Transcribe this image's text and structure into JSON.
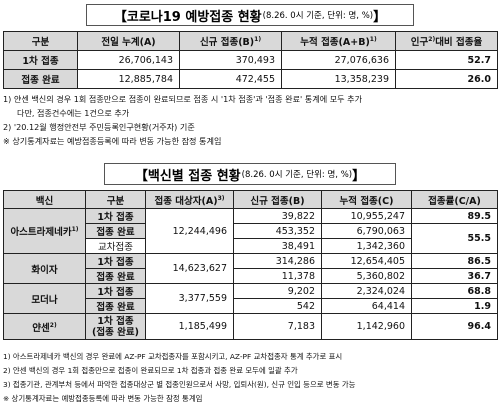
{
  "section1": {
    "title_main": "【코로나19 예방접종 현황",
    "title_sub": "(8.26. 0시 기준, 단위: 명, %)",
    "title_end": "】",
    "headers": [
      "구분",
      "전일 누계(A)",
      "신규 접종(B)",
      "누적 접종(A+B)",
      "인구",
      "대비 접종율"
    ],
    "header_sups": [
      "",
      "",
      "1)",
      "1)",
      "2)",
      ""
    ],
    "rows": [
      {
        "label": "1차 접종",
        "prev": "26,706,143",
        "new": "370,493",
        "total": "27,076,636",
        "rate": "52.7"
      },
      {
        "label": "접종 완료",
        "prev": "12,885,784",
        "new": "472,455",
        "total": "13,358,239",
        "rate": "26.0"
      }
    ],
    "notes": [
      "1) 얀센 백신의 경우 1회 접종만으로 접종이 완료되므로 접종 시 '1차 접종'과 '접종 완료' 통계에 모두 추가",
      "다만, 접종건수에는 1건으로 추가",
      "2) '20.12월 행정안전부 주민등록인구현황(거주자) 기준",
      "※ 상기통계자료는 예방접종등록에 따라 변동 가능한 잠정 통계임"
    ]
  },
  "section2": {
    "title_main": "【백신별 접종 현황",
    "title_sub": "(8.26. 0시 기준, 단위: 명, %)",
    "title_end": "】",
    "headers": [
      "백신",
      "구분",
      "접종 대상자(A)",
      "신규 접종(B)",
      "누적 접종(C)",
      "접종률(C/A)"
    ],
    "header_sups": [
      "",
      "",
      "3)",
      "",
      "",
      ""
    ],
    "az": {
      "name": "아스트라제네카",
      "name_sup": "1)",
      "target": "12,244,496",
      "first": {
        "label": "1차 접종",
        "new": "39,822",
        "total": "10,955,247",
        "rate": "89.5"
      },
      "complete": {
        "label": "접종 완료",
        "new": "453,352",
        "total": "6,790,063",
        "rate": "55.5"
      },
      "cross": {
        "label": "교차접종",
        "new": "38,491",
        "total": "1,342,360"
      }
    },
    "pfizer": {
      "name": "화이자",
      "target": "14,623,627",
      "first": {
        "label": "1차 접종",
        "new": "314,286",
        "total": "12,654,405",
        "rate": "86.5"
      },
      "complete": {
        "label": "접종 완료",
        "new": "11,378",
        "total": "5,360,802",
        "rate": "36.7"
      }
    },
    "moderna": {
      "name": "모더나",
      "target": "3,377,559",
      "first": {
        "label": "1차 접종",
        "new": "9,202",
        "total": "2,324,024",
        "rate": "68.8"
      },
      "complete": {
        "label": "접종 완료",
        "new": "542",
        "total": "64,414",
        "rate": "1.9"
      }
    },
    "janssen": {
      "name": "얀센",
      "name_sup": "2)",
      "target": "1,185,499",
      "label_line1": "1차 접종",
      "label_line2": "(접종 완료)",
      "new": "7,183",
      "total": "1,142,960",
      "rate": "96.4"
    },
    "notes": [
      "1) 아스트라제네카 백신의 경우 완료에 AZ-PF 교차접종자를 포함시키고, AZ-PF 교차접종자 통계 추가로 표시",
      "2) 얀센 백신의 경우 1회 접종만으로 접종이 완료되므로 1차 접종과 접종 완료 모두에 일괄 추가",
      "3) 접종기관, 관계부처 등에서 파악한 접종대상군 별 접종인원으로서 사망, 입퇴사(원), 신규 인입 등으로 변동 가능",
      "※ 상기통계자료는 예방접종등록에 따라 변동 가능한 잠정 통계임"
    ]
  }
}
